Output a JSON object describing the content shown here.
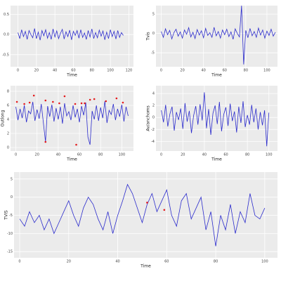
{
  "chart_data": [
    {
      "type": "line",
      "xlabel": "Time",
      "xlim": [
        -8,
        125
      ],
      "ylim": [
        -0.8,
        0.72
      ],
      "xticks": [
        0,
        20,
        40,
        60,
        80,
        100,
        120
      ],
      "yticks": [
        0.5,
        {
          "value": 0,
          "label": "0.0"
        },
        -0.5
      ],
      "series": [
        {
          "color": "#2b2bcc",
          "x": [
            0,
            2,
            4,
            6,
            8,
            10,
            12,
            14,
            16,
            18,
            20,
            22,
            24,
            26,
            28,
            30,
            32,
            34,
            36,
            38,
            40,
            42,
            44,
            46,
            48,
            50,
            52,
            54,
            56,
            58,
            60,
            62,
            64,
            66,
            68,
            70,
            72,
            74,
            76,
            78,
            80,
            82,
            84,
            86,
            88,
            90,
            92,
            94,
            96,
            98,
            100,
            102,
            104,
            106,
            108,
            110,
            112,
            114
          ],
          "values": [
            0.05,
            -0.1,
            0.12,
            -0.05,
            0.08,
            -0.12,
            0.1,
            0,
            -0.08,
            0.15,
            -0.1,
            0.06,
            -0.14,
            0.1,
            -0.03,
            0.12,
            -0.09,
            0.05,
            -0.12,
            0.14,
            -0.06,
            0.09,
            -0.1,
            0.03,
            0.13,
            -0.11,
            0.07,
            -0.05,
            0.11,
            -0.13,
            0.08,
            -0.02,
            0.1,
            -0.09,
            0.12,
            -0.07,
            0.04,
            -0.12,
            0.1,
            -0.06,
            0.14,
            -0.1,
            0.05,
            -0.08,
            0.11,
            -0.04,
            0.09,
            -0.13,
            0.06,
            -0.1,
            0.12,
            -0.05,
            0.08,
            -0.11,
            0.1,
            -0.07,
            0.05,
            -0.02
          ]
        }
      ]
    },
    {
      "type": "line",
      "xlabel": "Time",
      "ylabel": "Tvis",
      "xlim": [
        -5,
        110
      ],
      "ylim": [
        -8.6,
        7.2
      ],
      "xticks": [
        0,
        20,
        40,
        60,
        80,
        100
      ],
      "yticks": [
        5,
        0,
        -5
      ],
      "series": [
        {
          "color": "#2b2bcc",
          "x": [
            0,
            2,
            4,
            6,
            8,
            10,
            12,
            14,
            16,
            18,
            20,
            22,
            24,
            26,
            28,
            30,
            32,
            34,
            36,
            38,
            40,
            42,
            44,
            46,
            48,
            50,
            52,
            54,
            56,
            58,
            60,
            62,
            64,
            66,
            68,
            70,
            72,
            74,
            76,
            78,
            80,
            82,
            84,
            86,
            88,
            90,
            92,
            94,
            96,
            98,
            100,
            102,
            104,
            106,
            108
          ],
          "values": [
            0.5,
            -1,
            1.2,
            -0.3,
            0.8,
            -1.4,
            0.2,
            1.1,
            -0.7,
            0.4,
            -1.2,
            0.9,
            -0.2,
            1.5,
            -0.9,
            0.3,
            -1.3,
            1,
            -0.4,
            0.7,
            -1.1,
            1.3,
            -0.5,
            0.2,
            -1,
            1.6,
            -0.6,
            0.5,
            -1.2,
            0.9,
            -0.3,
            1.1,
            -0.8,
            0.4,
            -1.5,
            1.2,
            0,
            -0.9,
            7.2,
            -8,
            0.8,
            -1.1,
            1.3,
            -0.6,
            0.5,
            -1,
            1.4,
            -0.4,
            0.9,
            -1.2,
            0.6,
            -0.5,
            1.1,
            -0.7,
            0.3
          ]
        }
      ]
    },
    {
      "type": "line",
      "xlabel": "Time",
      "ylabel": "Outlong",
      "xlim": [
        -5,
        111
      ],
      "ylim": [
        -0.5,
        8.8
      ],
      "xticks": [
        0,
        20,
        40,
        60,
        80,
        100
      ],
      "yticks": [
        8,
        6,
        4,
        2,
        0
      ],
      "series": [
        {
          "color": "#2b2bcc",
          "x": [
            0,
            2,
            4,
            6,
            8,
            10,
            12,
            14,
            16,
            18,
            20,
            22,
            24,
            26,
            28,
            30,
            32,
            34,
            36,
            38,
            40,
            42,
            44,
            46,
            48,
            50,
            52,
            54,
            56,
            58,
            60,
            62,
            64,
            66,
            68,
            70,
            72,
            74,
            76,
            78,
            80,
            82,
            84,
            86,
            88,
            90,
            92,
            94,
            96,
            98,
            100,
            102,
            104,
            106
          ],
          "values": [
            5.8,
            3.9,
            5.5,
            4.2,
            6,
            3.6,
            5.2,
            4.8,
            6.5,
            3.8,
            5.4,
            4.1,
            6.2,
            3.5,
            0.8,
            5.9,
            4.4,
            6.1,
            3.7,
            5.6,
            4,
            5.8,
            3.4,
            6.3,
            4.5,
            5.1,
            3.9,
            6,
            4.3,
            5.5,
            3.6,
            5.9,
            4.6,
            6.4,
            1.5,
            0.4,
            5.2,
            4,
            6,
            3.8,
            5.7,
            4.2,
            6.6,
            3.5,
            5.3,
            4.7,
            6.2,
            3.9,
            5.5,
            4.4,
            6.1,
            3.7,
            5.8,
            4.5
          ]
        },
        {
          "color": "#e41a1c",
          "mode": "markers",
          "x": [
            1,
            8,
            13,
            17,
            28,
            35,
            41,
            46,
            56,
            62,
            65,
            70,
            74,
            85,
            95,
            101,
            28,
            57
          ],
          "values": [
            6.5,
            6.2,
            6.4,
            7.4,
            6.7,
            6.5,
            6.3,
            7.3,
            6.2,
            6.3,
            6.3,
            6.8,
            6.9,
            6.6,
            7,
            6.4,
            0.8,
            0.4
          ]
        }
      ]
    },
    {
      "type": "line",
      "xlabel": "Time",
      "ylabel": "Av/anchoms",
      "xlim": [
        -5,
        108
      ],
      "ylim": [
        -5.6,
        5.3
      ],
      "xticks": [
        0,
        20,
        40,
        60,
        80,
        100
      ],
      "yticks": [
        4,
        2,
        0,
        -2,
        -4
      ],
      "series": [
        {
          "color": "#2b2bcc",
          "x": [
            0,
            2,
            4,
            6,
            8,
            10,
            12,
            14,
            16,
            18,
            20,
            22,
            24,
            26,
            28,
            30,
            32,
            34,
            36,
            38,
            40,
            42,
            44,
            46,
            48,
            50,
            52,
            54,
            56,
            58,
            60,
            62,
            64,
            66,
            68,
            70,
            72,
            74,
            76,
            78,
            80,
            82,
            84,
            86,
            88,
            90,
            92,
            94,
            96,
            98,
            100
          ],
          "values": [
            1.2,
            -0.8,
            2.1,
            -1.5,
            0.6,
            1.8,
            -2.2,
            0.9,
            -0.4,
            1.5,
            -1.9,
            2.4,
            -0.7,
            1.1,
            -2.6,
            0.3,
            1.9,
            -1.2,
            2.2,
            -0.5,
            4.2,
            -1.8,
            1.4,
            -2.9,
            0.7,
            2,
            -1.1,
            2.6,
            -2.3,
            0.5,
            1.7,
            -1.4,
            2.3,
            -0.6,
            1,
            -2.5,
            1.8,
            -0.9,
            2.7,
            -1.6,
            0.4,
            -1.2,
            2.1,
            -0.8,
            1.5,
            -2,
            0.9,
            -1.3,
            1.2,
            -4.8,
            0.8
          ]
        }
      ]
    },
    {
      "type": "line",
      "xlabel": "Time",
      "ylabel": "TVIS",
      "xlim": [
        -2.3,
        105.2
      ],
      "ylim": [
        -16.7,
        6.9
      ],
      "xticks": [
        0,
        20,
        40,
        60,
        80,
        100
      ],
      "yticks": [
        5,
        0,
        -5,
        -10,
        -15
      ],
      "series": [
        {
          "color": "#2b2bcc",
          "x": [
            0,
            2,
            4,
            6,
            8,
            10,
            12,
            14,
            16,
            18,
            20,
            22,
            24,
            26,
            28,
            30,
            32,
            34,
            36,
            38,
            40,
            42,
            44,
            46,
            48,
            50,
            52,
            54,
            56,
            58,
            60,
            62,
            64,
            66,
            68,
            70,
            72,
            74,
            76,
            78,
            80,
            82,
            84,
            86,
            88,
            90,
            92,
            94,
            96,
            98,
            100
          ],
          "values": [
            -6,
            -8,
            -4,
            -7,
            -5,
            -9,
            -6,
            -10,
            -7,
            -4,
            -1,
            -5,
            -8,
            -3,
            0,
            -2,
            -6,
            -9,
            -4,
            -10,
            -5,
            -1,
            3.5,
            1,
            -3,
            -7,
            -2,
            1,
            -4,
            -1,
            2,
            -5,
            -8,
            -1,
            1,
            -6,
            -3,
            0,
            -9,
            -4,
            -13.5,
            -5,
            -9,
            -2,
            -10,
            -4,
            -7,
            1,
            -5,
            -6,
            -3
          ]
        },
        {
          "color": "#e41a1c",
          "mode": "markers",
          "x": [
            52,
            59
          ],
          "values": [
            -1.5,
            -3.5
          ]
        }
      ]
    }
  ]
}
